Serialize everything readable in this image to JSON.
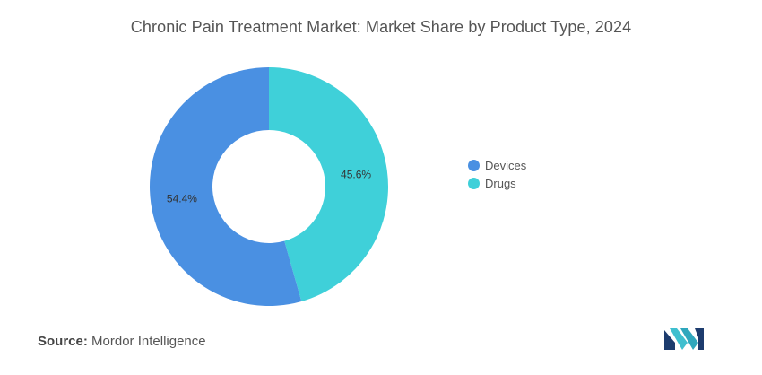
{
  "title": "Chronic Pain Treatment Market: Market Share by Product Type, 2024",
  "source": {
    "label": "Source:",
    "value": "Mordor Intelligence"
  },
  "chart_data": {
    "type": "pie",
    "donut": true,
    "title": "Chronic Pain Treatment Market: Market Share by Product Type, 2024",
    "categories": [
      "Devices",
      "Drugs"
    ],
    "values": [
      54.4,
      45.6
    ],
    "data_labels": [
      "54.4%",
      "45.6%"
    ],
    "colors": [
      "#4a90e2",
      "#3fd0d9"
    ],
    "legend_position": "right"
  },
  "legend": [
    {
      "label": "Devices",
      "color": "#4a90e2"
    },
    {
      "label": "Drugs",
      "color": "#3fd0d9"
    }
  ],
  "logo": {
    "icon": "mordor-intelligence-logo-icon",
    "colors": [
      "#1d3c6e",
      "#3fbfcf"
    ]
  }
}
